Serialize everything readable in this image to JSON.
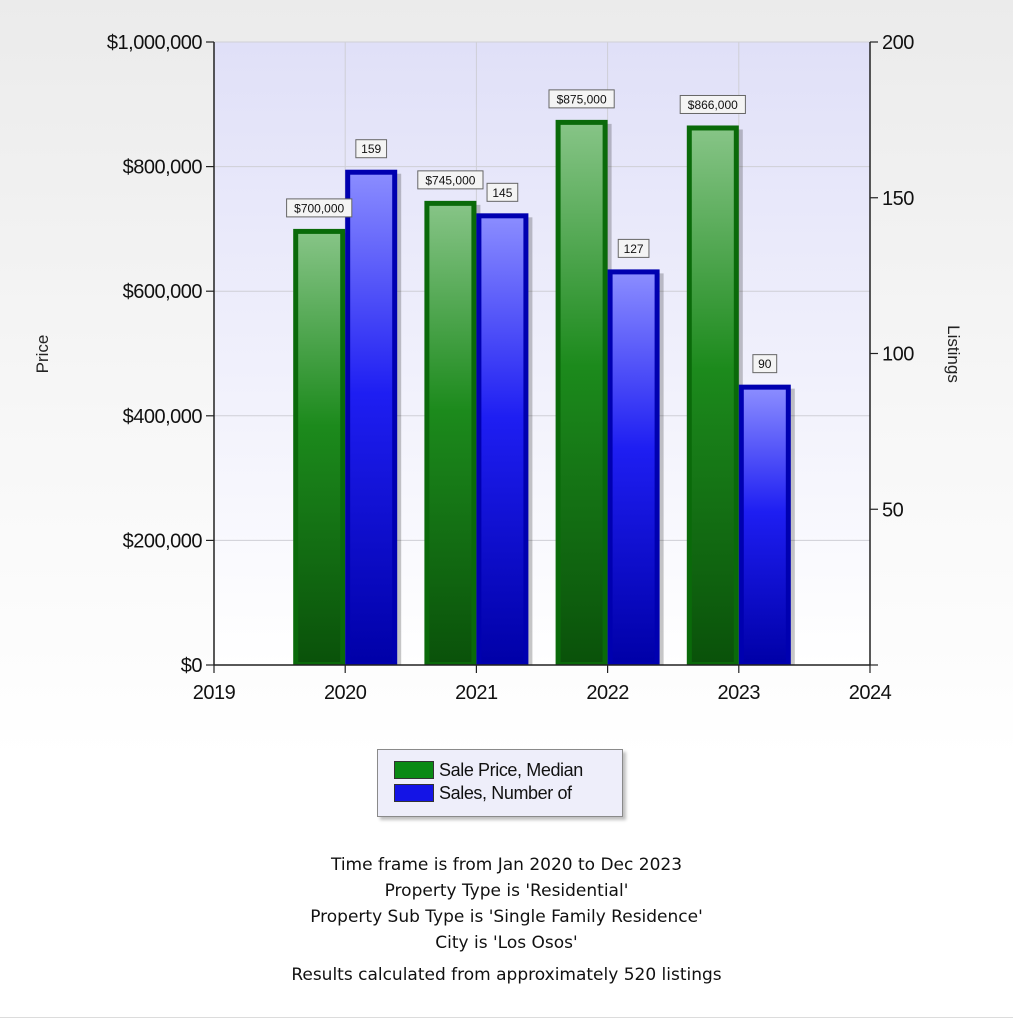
{
  "chart_data": {
    "type": "bar",
    "categories": [
      "2020",
      "2021",
      "2022",
      "2023"
    ],
    "x_ticks": [
      "2019",
      "2020",
      "2021",
      "2022",
      "2023",
      "2024"
    ],
    "series": [
      {
        "name": "Sale Price, Median",
        "axis": "left",
        "color": "#0a8a14",
        "values": [
          700000,
          745000,
          875000,
          866000
        ],
        "labels": [
          "$700,000",
          "$745,000",
          "$875,000",
          "$866,000"
        ]
      },
      {
        "name": "Sales, Number of",
        "axis": "right",
        "color": "#1010e8",
        "values": [
          159,
          145,
          127,
          90
        ],
        "labels": [
          "159",
          "145",
          "127",
          "90"
        ]
      }
    ],
    "y_left": {
      "label": "Price",
      "range": [
        0,
        1000000
      ],
      "ticks": [
        "$0",
        "$200,000",
        "$400,000",
        "$600,000",
        "$800,000",
        "$1,000,000"
      ]
    },
    "y_right": {
      "label": "Listings",
      "range": [
        0,
        200
      ],
      "ticks": [
        "50",
        "100",
        "150",
        "200"
      ]
    },
    "grid": true,
    "legend_position": "bottom"
  },
  "notes": {
    "line1": "Time frame is from Jan 2020 to Dec 2023",
    "line2": "Property Type is 'Residential'",
    "line3": "Property Sub Type is 'Single Family Residence'",
    "line4": "City is 'Los Osos'",
    "result": "Results calculated from approximately 520 listings"
  }
}
